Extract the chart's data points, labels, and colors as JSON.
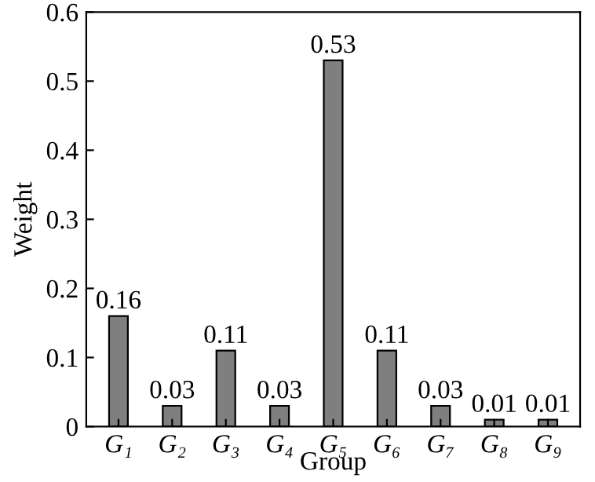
{
  "chart_data": {
    "type": "bar",
    "xlabel": "Group",
    "ylabel": "Weight",
    "categories": [
      "G₁",
      "G₂",
      "G₃",
      "G₄",
      "G₅",
      "G₆",
      "G₇",
      "G₈",
      "G₉"
    ],
    "values": [
      0.16,
      0.03,
      0.11,
      0.03,
      0.53,
      0.11,
      0.03,
      0.01,
      0.01
    ],
    "color": "#7f7f7f",
    "data_labels": true,
    "ylim": [
      0,
      0.6
    ],
    "yticks": [
      0,
      0.1,
      0.2,
      0.3,
      0.4,
      0.5,
      0.6
    ],
    "grid": false
  }
}
